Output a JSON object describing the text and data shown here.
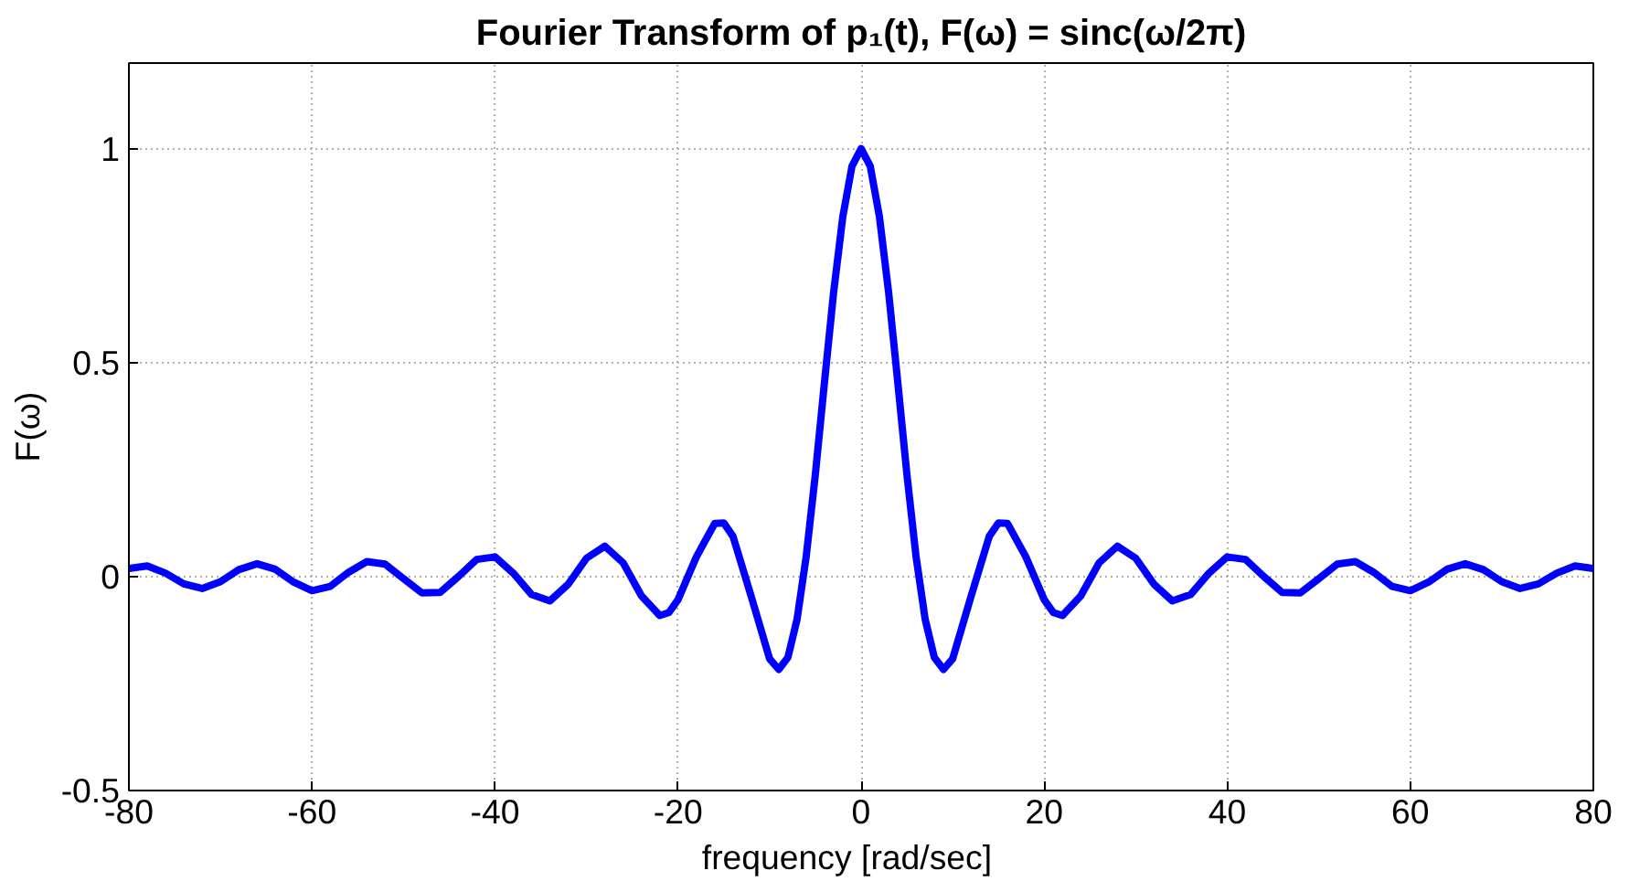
{
  "chart_data": {
    "type": "line",
    "title": "Fourier Transform of p₁(t), F(ω) = sinc(ω/2π)",
    "xlabel": "frequency    [rad/sec]",
    "ylabel": "F(ω)",
    "x": [
      -80,
      -78,
      -76,
      -74,
      -72,
      -70,
      -68,
      -66,
      -64,
      -62,
      -60,
      -58,
      -56,
      -54,
      -52,
      -50,
      -48,
      -46,
      -44,
      -42,
      -40,
      -38,
      -36,
      -34,
      -32,
      -30,
      -28,
      -26,
      -24,
      -22,
      -21,
      -20,
      -18,
      -16,
      -15,
      -14,
      -12,
      -10,
      -9,
      -8,
      -7,
      -6,
      -5,
      -4,
      -3,
      -2,
      -1,
      0,
      1,
      2,
      3,
      4,
      5,
      6,
      7,
      8,
      9,
      10,
      12,
      14,
      15,
      16,
      18,
      20,
      21,
      22,
      24,
      26,
      28,
      30,
      32,
      34,
      36,
      38,
      40,
      42,
      44,
      46,
      48,
      50,
      52,
      54,
      56,
      58,
      60,
      62,
      64,
      66,
      68,
      70,
      72,
      74,
      76,
      78,
      80
    ],
    "series": [
      {
        "color": "#0000ff",
        "values": [
          0.019,
          0.025,
          0.008,
          -0.017,
          -0.028,
          -0.012,
          0.016,
          0.03,
          0.017,
          -0.013,
          -0.033,
          -0.023,
          0.01,
          0.035,
          0.029,
          -0.005,
          -0.038,
          -0.037,
          0.0,
          0.04,
          0.046,
          0.008,
          -0.042,
          -0.057,
          -0.018,
          0.043,
          0.071,
          0.032,
          -0.045,
          -0.091,
          -0.084,
          -0.054,
          0.046,
          0.124,
          0.125,
          0.094,
          -0.047,
          -0.192,
          -0.217,
          -0.189,
          -0.1,
          0.047,
          0.239,
          0.455,
          0.665,
          0.841,
          0.959,
          1,
          0.959,
          0.841,
          0.665,
          0.455,
          0.239,
          0.047,
          -0.1,
          -0.189,
          -0.217,
          -0.192,
          -0.047,
          0.094,
          0.125,
          0.124,
          0.046,
          -0.054,
          -0.084,
          -0.091,
          -0.045,
          0.032,
          0.071,
          0.043,
          -0.018,
          -0.057,
          -0.042,
          0.008,
          0.046,
          0.04,
          0.0,
          -0.037,
          -0.038,
          -0.005,
          0.029,
          0.035,
          0.01,
          -0.023,
          -0.033,
          -0.013,
          0.017,
          0.03,
          0.016,
          -0.012,
          -0.028,
          -0.017,
          0.008,
          0.025,
          0.019
        ]
      }
    ],
    "xlim": [
      -80,
      80
    ],
    "ylim": [
      -0.5,
      1.2
    ],
    "xticks": [
      -80,
      -60,
      -40,
      -20,
      0,
      20,
      40,
      60,
      80
    ],
    "yticks": [
      -0.5,
      0,
      0.5,
      1
    ],
    "grid": true,
    "line_style": "solid",
    "marker": "none"
  }
}
